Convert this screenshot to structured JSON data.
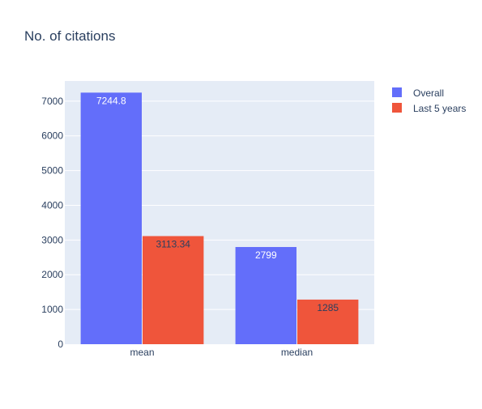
{
  "chart_data": {
    "type": "bar",
    "title": "No. of citations",
    "xlabel": "",
    "ylabel": "",
    "categories": [
      "mean",
      "median"
    ],
    "series": [
      {
        "name": "Overall",
        "values": [
          7244.8,
          2799
        ],
        "labels": [
          "7244.8",
          "2799"
        ],
        "color": "#636efa",
        "label_color": "#ffffff"
      },
      {
        "name": "Last 5 years",
        "values": [
          3113.34,
          1285
        ],
        "labels": [
          "3113.34",
          "1285"
        ],
        "color": "#ef553b",
        "label_color": "#2a3f5f"
      }
    ],
    "ylim": [
      0,
      7580
    ],
    "yticks": [
      0,
      1000,
      2000,
      3000,
      4000,
      5000,
      6000,
      7000
    ],
    "ytick_labels": [
      "0",
      "1000",
      "2000",
      "3000",
      "4000",
      "5000",
      "6000",
      "7000"
    ],
    "grid": true,
    "legend_position": "top-right",
    "plot_background": "#e5ecf6",
    "text_color": "#2a3f5f"
  }
}
